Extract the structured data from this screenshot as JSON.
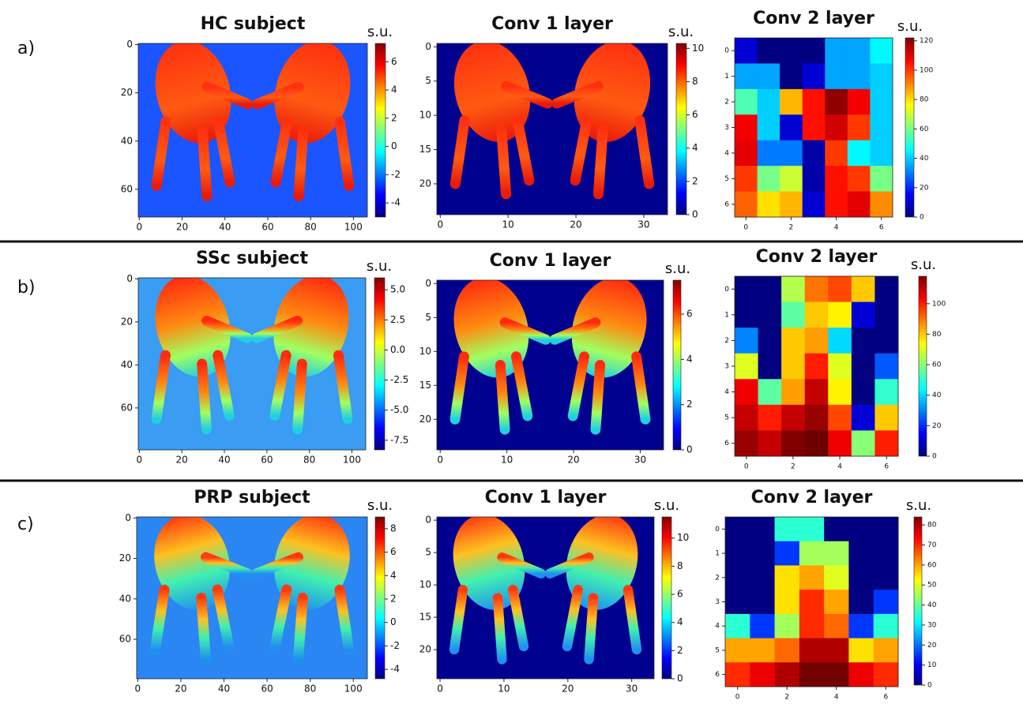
{
  "rows": [
    {
      "label": "a)",
      "charts": [
        {
          "type": "image-heatmap",
          "title": "HC subject",
          "unit": "s.u.",
          "xlim": [
            -0.5,
            106.5
          ],
          "ylim": [
            -0.5,
            71.5
          ],
          "xticks": [
            0,
            20,
            40,
            60,
            80,
            100
          ],
          "yticks": [
            0,
            20,
            40,
            60
          ],
          "clim": [
            -5,
            7.3
          ],
          "cticks": [
            -4,
            -2,
            0,
            2,
            4,
            6
          ]
        },
        {
          "type": "image-heatmap",
          "title": "Conv 1 layer",
          "unit": "s.u.",
          "xlim": [
            -0.5,
            33.5
          ],
          "ylim": [
            -0.5,
            24.5
          ],
          "xticks": [
            0,
            10,
            20,
            30
          ],
          "yticks": [
            0,
            5,
            10,
            15,
            20
          ],
          "clim": [
            0,
            10.3
          ],
          "cticks": [
            0,
            2,
            4,
            6,
            8,
            10
          ]
        },
        {
          "type": "heatmap",
          "title": "Conv 2 layer",
          "unit": "s.u.",
          "xlim": [
            -0.5,
            6.5
          ],
          "ylim": [
            -0.5,
            6.5
          ],
          "xticks": [
            0,
            2,
            4,
            6
          ],
          "yticks": [
            0,
            1,
            2,
            3,
            4,
            5,
            6
          ],
          "clim": [
            0,
            122
          ],
          "cticks": [
            0,
            20,
            40,
            60,
            80,
            100,
            120
          ],
          "matrix": [
            [
              10,
              0,
              0,
              0,
              35,
              35,
              45
            ],
            [
              35,
              35,
              0,
              10,
              35,
              35,
              40
            ],
            [
              55,
              40,
              85,
              105,
              120,
              108,
              40
            ],
            [
              108,
              40,
              10,
              105,
              112,
              100,
              40
            ],
            [
              110,
              30,
              30,
              5,
              100,
              45,
              40
            ],
            [
              100,
              60,
              70,
              5,
              105,
              100,
              60
            ],
            [
              95,
              80,
              85,
              10,
              105,
              110,
              90
            ]
          ]
        }
      ]
    },
    {
      "label": "b)",
      "charts": [
        {
          "type": "image-heatmap",
          "title": "SSc subject",
          "unit": "s.u.",
          "xlim": [
            -0.5,
            106.5
          ],
          "ylim": [
            -0.5,
            79.5
          ],
          "xticks": [
            0,
            20,
            40,
            60,
            80,
            100
          ],
          "yticks": [
            0,
            20,
            40,
            60
          ],
          "clim": [
            -8.3,
            6
          ],
          "cticks": [
            -7.5,
            {
              "value": -5,
              "label": "-5.0"
            },
            -2.5,
            {
              "value": 0,
              "label": "0.0"
            },
            2.5,
            {
              "value": 5,
              "label": "5.0"
            }
          ]
        },
        {
          "type": "image-heatmap",
          "title": "Conv 1 layer",
          "unit": "s.u.",
          "xlim": [
            -0.5,
            33.5
          ],
          "ylim": [
            -0.5,
            24.5
          ],
          "xticks": [
            0,
            10,
            20,
            30
          ],
          "yticks": [
            0,
            5,
            10,
            15,
            20
          ],
          "clim": [
            0,
            7.5
          ],
          "cticks": [
            0,
            2,
            4,
            6
          ]
        },
        {
          "type": "heatmap",
          "title": "Conv 2 layer",
          "unit": "s.u.",
          "xlim": [
            -0.5,
            6.5
          ],
          "ylim": [
            -0.5,
            6.5
          ],
          "xticks": [
            0,
            2,
            4,
            6
          ],
          "yticks": [
            0,
            1,
            2,
            3,
            4,
            5,
            6
          ],
          "clim": [
            0,
            118
          ],
          "cticks": [
            0,
            20,
            40,
            60,
            80,
            100
          ],
          "matrix": [
            [
              0,
              0,
              65,
              90,
              95,
              80,
              0
            ],
            [
              0,
              0,
              55,
              80,
              75,
              10,
              0
            ],
            [
              30,
              0,
              80,
              85,
              40,
              0,
              0
            ],
            [
              70,
              0,
              80,
              100,
              70,
              0,
              25
            ],
            [
              105,
              55,
              85,
              110,
              75,
              0,
              50
            ],
            [
              110,
              100,
              110,
              115,
              95,
              10,
              80
            ],
            [
              115,
              110,
              118,
              120,
              105,
              60,
              100
            ]
          ]
        }
      ]
    },
    {
      "label": "c)",
      "charts": [
        {
          "type": "image-heatmap",
          "title": "PRP subject",
          "unit": "s.u.",
          "xlim": [
            -0.5,
            106.5
          ],
          "ylim": [
            -0.5,
            79.5
          ],
          "xticks": [
            0,
            20,
            40,
            60,
            80,
            100
          ],
          "yticks": [
            0,
            20,
            40,
            60
          ],
          "clim": [
            -4.8,
            9
          ],
          "cticks": [
            -4,
            -2,
            0,
            2,
            4,
            6,
            8
          ]
        },
        {
          "type": "image-heatmap",
          "title": "Conv 1 layer",
          "unit": "s.u.",
          "xlim": [
            -0.5,
            33.5
          ],
          "ylim": [
            -0.5,
            24.5
          ],
          "xticks": [
            0,
            10,
            20,
            30
          ],
          "yticks": [
            0,
            5,
            10,
            15,
            20
          ],
          "clim": [
            0,
            11.5
          ],
          "cticks": [
            0,
            2,
            4,
            6,
            8,
            10
          ]
        },
        {
          "type": "heatmap",
          "title": "Conv 2 layer",
          "unit": "s.u.",
          "xlim": [
            -0.5,
            6.5
          ],
          "ylim": [
            -0.5,
            6.5
          ],
          "xticks": [
            0,
            2,
            4,
            6
          ],
          "yticks": [
            0,
            1,
            2,
            3,
            4,
            5,
            6
          ],
          "clim": [
            0,
            84
          ],
          "cticks": [
            0,
            10,
            20,
            30,
            40,
            50,
            60,
            70,
            80
          ],
          "matrix": [
            [
              0,
              0,
              35,
              35,
              0,
              0,
              0
            ],
            [
              0,
              0,
              15,
              45,
              45,
              0,
              0
            ],
            [
              0,
              0,
              55,
              60,
              50,
              0,
              0
            ],
            [
              0,
              0,
              55,
              70,
              60,
              0,
              15
            ],
            [
              35,
              15,
              45,
              70,
              65,
              15,
              35
            ],
            [
              60,
              60,
              65,
              80,
              80,
              55,
              60
            ],
            [
              70,
              75,
              80,
              85,
              85,
              75,
              70
            ]
          ]
        }
      ]
    }
  ]
}
